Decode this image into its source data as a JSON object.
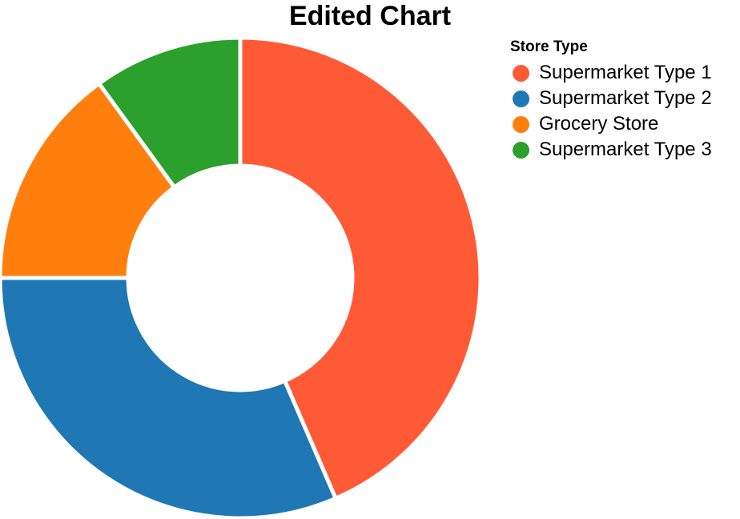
{
  "chart_data": {
    "type": "pie",
    "variant": "donut",
    "title": "Edited Chart",
    "legend": {
      "title": "Store Type",
      "placement": "right"
    },
    "series": [
      {
        "categories": [
          "Supermarket Type 1",
          "Supermarket Type 2",
          "Grocery Store",
          "Supermarket Type 3"
        ],
        "values": [
          43.5,
          31.5,
          15.0,
          10.0
        ],
        "colors": [
          "#ff5a36",
          "#1f77b4",
          "#ff7f0e",
          "#2ca02c"
        ]
      }
    ]
  }
}
